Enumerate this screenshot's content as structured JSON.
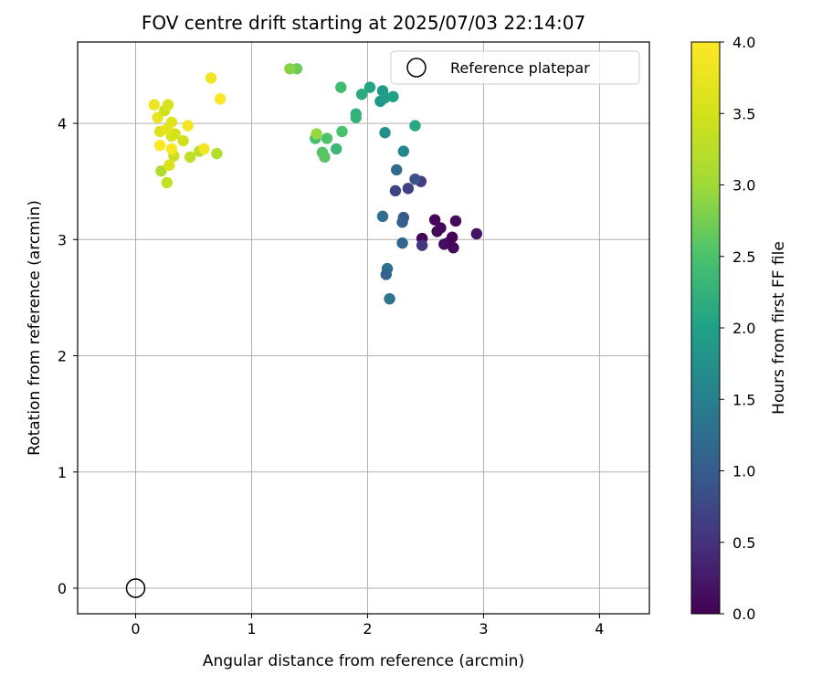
{
  "chart_data": {
    "type": "scatter",
    "title": "FOV centre drift starting at 2025/07/03 22:14:07",
    "xlabel": "Angular distance from reference (arcmin)",
    "ylabel": "Rotation from reference (arcmin)",
    "xlim": [
      -0.5,
      4.43
    ],
    "ylim": [
      -0.22,
      4.7
    ],
    "xticks": [
      0,
      1,
      2,
      3,
      4
    ],
    "yticks": [
      0,
      1,
      2,
      3,
      4
    ],
    "grid": true,
    "legend": {
      "position": "top-right",
      "entries": [
        "Reference platepar"
      ]
    },
    "reference": {
      "x": 0,
      "y": 0,
      "name": "Reference platepar"
    },
    "colorbar": {
      "label": "Hours from first FF file",
      "colormap": "viridis",
      "range": [
        0.0,
        4.0
      ],
      "ticks": [
        0.0,
        0.5,
        1.0,
        1.5,
        2.0,
        2.5,
        3.0,
        3.5,
        4.0
      ],
      "tick_labels": [
        "0.0",
        "0.5",
        "1.0",
        "1.5",
        "2.0",
        "2.5",
        "3.0",
        "3.5",
        "4.0"
      ]
    },
    "points": [
      {
        "x": 2.47,
        "y": 3.01,
        "t": 0.02
      },
      {
        "x": 2.58,
        "y": 3.17,
        "t": 0.05
      },
      {
        "x": 2.6,
        "y": 3.07,
        "t": 0.08
      },
      {
        "x": 2.63,
        "y": 3.1,
        "t": 0.1
      },
      {
        "x": 2.66,
        "y": 2.96,
        "t": 0.12
      },
      {
        "x": 2.69,
        "y": 2.97,
        "t": 0.14
      },
      {
        "x": 2.73,
        "y": 3.02,
        "t": 0.04
      },
      {
        "x": 2.74,
        "y": 2.93,
        "t": 0.06
      },
      {
        "x": 2.76,
        "y": 3.16,
        "t": 0.09
      },
      {
        "x": 2.94,
        "y": 3.05,
        "t": 0.18
      },
      {
        "x": 2.47,
        "y": 2.95,
        "t": 0.55
      },
      {
        "x": 2.46,
        "y": 3.5,
        "t": 0.6
      },
      {
        "x": 2.35,
        "y": 3.44,
        "t": 0.68
      },
      {
        "x": 2.24,
        "y": 3.42,
        "t": 0.72
      },
      {
        "x": 2.41,
        "y": 3.52,
        "t": 0.9
      },
      {
        "x": 2.25,
        "y": 3.6,
        "t": 1.2
      },
      {
        "x": 2.31,
        "y": 3.19,
        "t": 0.95
      },
      {
        "x": 2.3,
        "y": 3.15,
        "t": 1.05
      },
      {
        "x": 2.3,
        "y": 2.97,
        "t": 1.15
      },
      {
        "x": 2.13,
        "y": 3.2,
        "t": 1.25
      },
      {
        "x": 2.17,
        "y": 2.75,
        "t": 1.3
      },
      {
        "x": 2.16,
        "y": 2.7,
        "t": 1.1
      },
      {
        "x": 2.19,
        "y": 2.49,
        "t": 1.35
      },
      {
        "x": 2.31,
        "y": 3.76,
        "t": 1.6
      },
      {
        "x": 2.15,
        "y": 3.92,
        "t": 1.75
      },
      {
        "x": 2.41,
        "y": 3.98,
        "t": 2.1
      },
      {
        "x": 2.11,
        "y": 4.19,
        "t": 1.85
      },
      {
        "x": 2.13,
        "y": 4.28,
        "t": 1.9
      },
      {
        "x": 2.15,
        "y": 4.22,
        "t": 1.95
      },
      {
        "x": 2.22,
        "y": 4.23,
        "t": 2.0
      },
      {
        "x": 2.02,
        "y": 4.31,
        "t": 2.05
      },
      {
        "x": 1.95,
        "y": 4.25,
        "t": 2.15
      },
      {
        "x": 1.9,
        "y": 4.08,
        "t": 2.2
      },
      {
        "x": 1.9,
        "y": 4.05,
        "t": 2.25
      },
      {
        "x": 1.77,
        "y": 4.31,
        "t": 2.4
      },
      {
        "x": 1.78,
        "y": 3.93,
        "t": 2.5
      },
      {
        "x": 1.73,
        "y": 3.78,
        "t": 2.35
      },
      {
        "x": 1.55,
        "y": 3.87,
        "t": 2.45
      },
      {
        "x": 1.61,
        "y": 3.75,
        "t": 2.55
      },
      {
        "x": 1.63,
        "y": 3.71,
        "t": 2.6
      },
      {
        "x": 1.65,
        "y": 3.87,
        "t": 2.52
      },
      {
        "x": 1.39,
        "y": 4.47,
        "t": 2.7
      },
      {
        "x": 1.33,
        "y": 4.47,
        "t": 2.85
      },
      {
        "x": 1.56,
        "y": 3.91,
        "t": 2.95
      },
      {
        "x": 0.7,
        "y": 3.74,
        "t": 3.2
      },
      {
        "x": 0.47,
        "y": 3.71,
        "t": 3.3
      },
      {
        "x": 0.22,
        "y": 3.59,
        "t": 3.15
      },
      {
        "x": 0.27,
        "y": 3.49,
        "t": 3.35
      },
      {
        "x": 0.29,
        "y": 3.64,
        "t": 3.6
      },
      {
        "x": 0.33,
        "y": 3.72,
        "t": 3.4
      },
      {
        "x": 0.55,
        "y": 3.76,
        "t": 3.25
      },
      {
        "x": 0.59,
        "y": 3.78,
        "t": 3.85
      },
      {
        "x": 0.31,
        "y": 3.78,
        "t": 3.95
      },
      {
        "x": 0.21,
        "y": 3.81,
        "t": 4.0
      },
      {
        "x": 0.41,
        "y": 3.85,
        "t": 3.45
      },
      {
        "x": 0.31,
        "y": 3.89,
        "t": 3.55
      },
      {
        "x": 0.34,
        "y": 3.91,
        "t": 3.5
      },
      {
        "x": 0.21,
        "y": 3.93,
        "t": 3.6
      },
      {
        "x": 0.27,
        "y": 3.95,
        "t": 3.7
      },
      {
        "x": 0.45,
        "y": 3.98,
        "t": 3.9
      },
      {
        "x": 0.31,
        "y": 4.01,
        "t": 3.65
      },
      {
        "x": 0.19,
        "y": 4.05,
        "t": 3.75
      },
      {
        "x": 0.25,
        "y": 4.11,
        "t": 3.45
      },
      {
        "x": 0.28,
        "y": 4.16,
        "t": 3.55
      },
      {
        "x": 0.16,
        "y": 4.16,
        "t": 3.8
      },
      {
        "x": 0.73,
        "y": 4.21,
        "t": 4.0
      },
      {
        "x": 0.65,
        "y": 4.39,
        "t": 3.85
      }
    ]
  }
}
